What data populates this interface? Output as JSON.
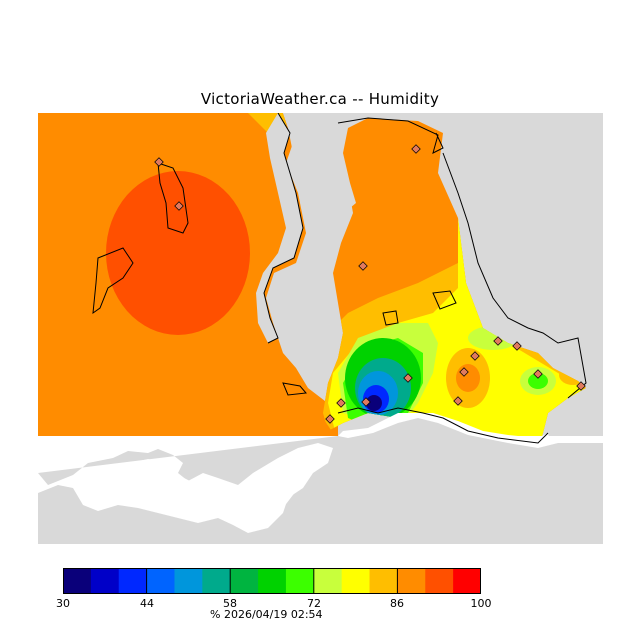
{
  "title": "VictoriaWeather.ca -- Humidity",
  "caption": "%  2026/04/19 02:54",
  "colors": {
    "land_grey": "#d9d9d9",
    "water_white": "#ffffff",
    "outline": "#000000",
    "station_fill": "#e07a5f"
  },
  "colorbar": {
    "colors": [
      "#0a007a",
      "#0000c8",
      "#0028ff",
      "#0064ff",
      "#0096dc",
      "#00aa8c",
      "#00b440",
      "#00d200",
      "#3cff00",
      "#c8ff3c",
      "#ffff00",
      "#ffbe00",
      "#ff8c00",
      "#ff5000",
      "#ff0000"
    ],
    "ticks": [
      "30",
      "44",
      "58",
      "72",
      "86",
      "100"
    ]
  },
  "stations_count": 15
}
